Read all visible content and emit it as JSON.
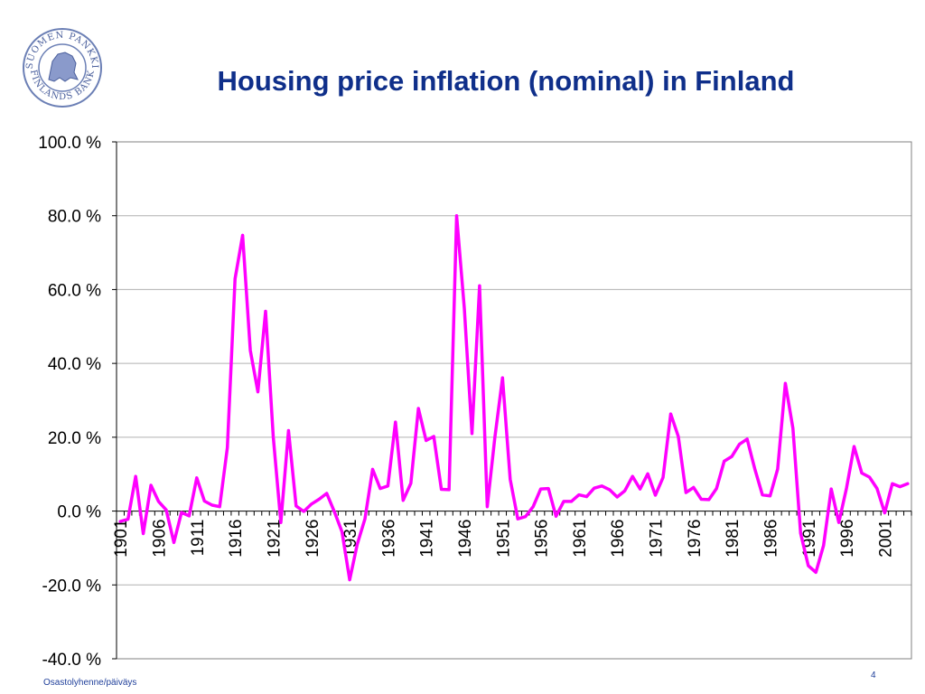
{
  "slide": {
    "title": "Housing price inflation (nominal) in Finland",
    "footer_left": "Osastolyhenne/päiväys",
    "page_number": "4",
    "logo_text": "SUOMEN PANKKI FINLANDS BANK",
    "colors": {
      "title": "#0f2f8a",
      "line": "#ff00ff",
      "grid": "#b0b0b0"
    }
  },
  "chart_data": {
    "type": "line",
    "title": "",
    "xlabel": "",
    "ylabel": "",
    "ylim": [
      -40,
      100
    ],
    "y_ticks": [
      100,
      80,
      60,
      40,
      20,
      0,
      -20,
      -40
    ],
    "y_tick_labels": [
      "100.0 %",
      "80.0 %",
      "60.0 %",
      "40.0 %",
      "20.0 %",
      "0.0 %",
      "-20.0 %",
      "-40.0 %"
    ],
    "x_start": 1901,
    "x_tick_labels": [
      "1901",
      "1906",
      "1911",
      "1916",
      "1921",
      "1926",
      "1931",
      "1936",
      "1941",
      "1946",
      "1951",
      "1956",
      "1961",
      "1966",
      "1971",
      "1976",
      "1981",
      "1986",
      "1991",
      "1996",
      "2001"
    ],
    "grid": "horizontal",
    "legend": "none",
    "series": [
      {
        "values": [
          -2.8,
          -2.2,
          9.4,
          -6.1,
          7.0,
          2.6,
          0.3,
          -8.5,
          -0.4,
          -1.3,
          9.0,
          2.7,
          1.6,
          1.2,
          17.2,
          62.9,
          74.7,
          43.5,
          32.3,
          54.1,
          20.1,
          -3.1,
          21.8,
          1.4,
          -0.1,
          1.9,
          3.2,
          4.8,
          -0.2,
          -5.6,
          -18.6,
          -9.0,
          -2.1,
          11.3,
          6.1,
          6.8,
          24.1,
          2.9,
          7.5,
          27.8,
          19.1,
          20.2,
          5.9,
          5.8,
          80.0,
          55.0,
          21.0,
          61.0,
          1.2,
          19.9,
          36.1,
          8.6,
          -2.1,
          -1.5,
          1.2,
          6.0,
          6.1,
          -1.4,
          2.6,
          2.6,
          4.4,
          3.9,
          6.2,
          6.8,
          5.8,
          3.8,
          5.5,
          9.4,
          6.0,
          10.1,
          4.3,
          9.1,
          26.3,
          20.2,
          5.0,
          6.4,
          3.2,
          3.1,
          6.1,
          13.5,
          14.8,
          18.1,
          19.5,
          11.5,
          4.4,
          4.1,
          11.4,
          34.6,
          22.4,
          -6.0,
          -14.8,
          -16.6,
          -9.3,
          6.0,
          -3.1,
          6.2,
          17.5,
          10.3,
          9.2,
          6.1,
          -0.5,
          7.4,
          6.6,
          7.4
        ]
      }
    ]
  }
}
